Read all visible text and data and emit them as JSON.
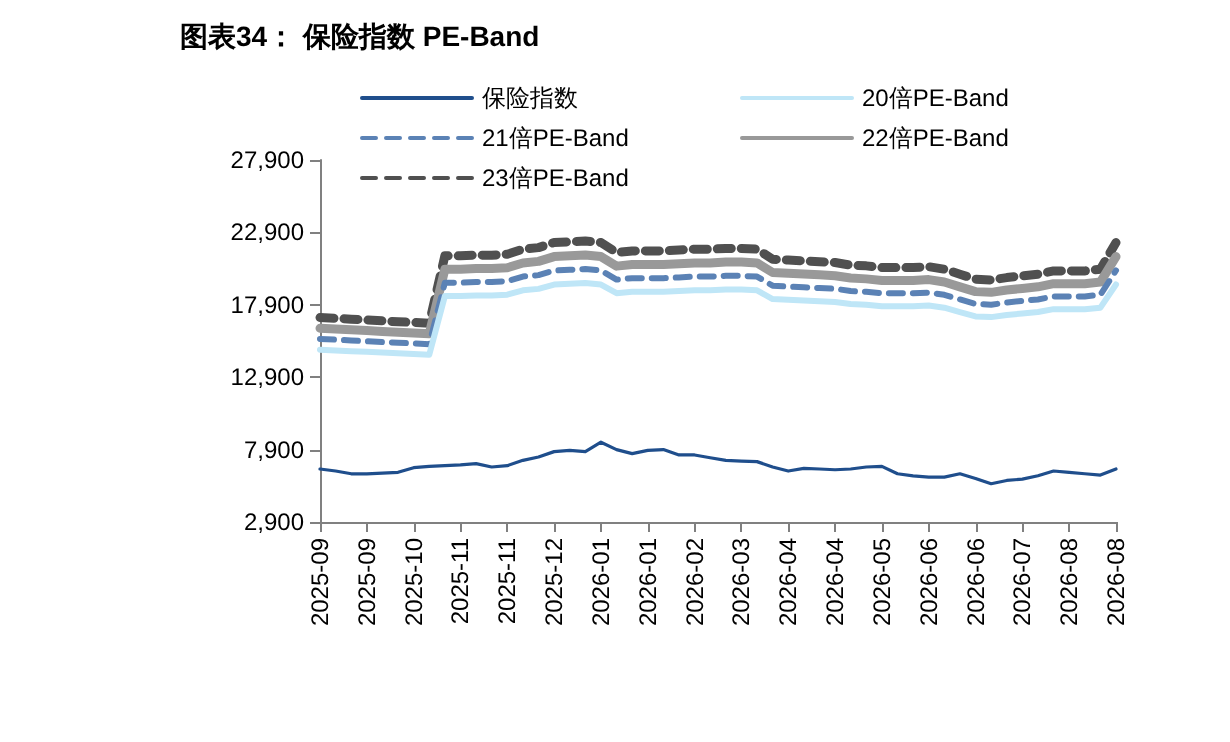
{
  "chart_data": {
    "type": "line",
    "title": "图表34： 保险指数 PE-Band",
    "categories": [
      "2025-09",
      null,
      null,
      "2025-09",
      null,
      null,
      "2025-10",
      null,
      null,
      "2025-11",
      null,
      null,
      "2025-11",
      null,
      null,
      "2025-12",
      null,
      null,
      "2026-01",
      null,
      null,
      "2026-01",
      null,
      null,
      "2026-02",
      null,
      null,
      "2026-03",
      null,
      null,
      "2026-04",
      null,
      null,
      "2026-04",
      null,
      null,
      "2026-05",
      null,
      null,
      "2026-06",
      null,
      null,
      "2026-06",
      null,
      null,
      "2026-07",
      null,
      null,
      "2026-08",
      null,
      null,
      "2026-08"
    ],
    "series": [
      {
        "name": "保险指数",
        "color": "#1f4e8c",
        "line_style": "solid",
        "values": [
          6560,
          6420,
          6230,
          6230,
          6280,
          6330,
          6650,
          6740,
          6790,
          6840,
          6930,
          6700,
          6790,
          7160,
          7390,
          7760,
          7850,
          7760,
          8410,
          7900,
          7620,
          7850,
          7900,
          7530,
          7530,
          7340,
          7160,
          7110,
          7070,
          6700,
          6420,
          6600,
          6560,
          6510,
          6560,
          6700,
          6740,
          6230,
          6090,
          6000,
          6000,
          6230,
          5910,
          5540,
          5770,
          5860,
          6090,
          6420,
          6330,
          6230,
          6140,
          6560
        ]
      },
      {
        "name": "20倍PE-Band",
        "color": "#bfe6f7",
        "line_style": "solid",
        "values": [
          14800,
          14750,
          14700,
          14650,
          14600,
          14550,
          14500,
          14450,
          18500,
          18500,
          18550,
          18550,
          18600,
          18900,
          19000,
          19300,
          19350,
          19400,
          19300,
          18700,
          18800,
          18800,
          18800,
          18850,
          18900,
          18900,
          18950,
          18950,
          18900,
          18300,
          18250,
          18200,
          18150,
          18100,
          17950,
          17900,
          17800,
          17800,
          17800,
          17850,
          17700,
          17400,
          17100,
          17050,
          17200,
          17300,
          17400,
          17600,
          17600,
          17600,
          17700,
          19300
        ]
      },
      {
        "name": "21倍PE-Band",
        "color": "#5b82b5",
        "line_style": "dashed",
        "values": [
          15540,
          15490,
          15440,
          15380,
          15330,
          15280,
          15230,
          15170,
          19430,
          19430,
          19480,
          19480,
          19530,
          19850,
          19950,
          20270,
          20320,
          20370,
          20270,
          19640,
          19740,
          19740,
          19740,
          19790,
          19850,
          19850,
          19900,
          19900,
          19850,
          19220,
          19160,
          19110,
          19060,
          19010,
          18850,
          18800,
          18690,
          18690,
          18690,
          18740,
          18590,
          18270,
          17960,
          17900,
          18060,
          18170,
          18270,
          18480,
          18480,
          18480,
          18590,
          20270
        ]
      },
      {
        "name": "22倍PE-Band",
        "color": "#999999",
        "line_style": "solid",
        "values": [
          16280,
          16230,
          16170,
          16120,
          16060,
          16010,
          15950,
          15900,
          20350,
          20350,
          20410,
          20410,
          20460,
          20790,
          20900,
          21230,
          21290,
          21340,
          21230,
          20570,
          20680,
          20680,
          20680,
          20740,
          20790,
          20790,
          20850,
          20850,
          20790,
          20130,
          20080,
          20020,
          19970,
          19910,
          19750,
          19690,
          19580,
          19580,
          19580,
          19640,
          19470,
          19140,
          18810,
          18760,
          18920,
          19030,
          19140,
          19360,
          19360,
          19360,
          19470,
          21230
        ]
      },
      {
        "name": "23倍PE-Band",
        "color": "#505050",
        "line_style": "dashed",
        "values": [
          17020,
          16960,
          16910,
          16850,
          16790,
          16730,
          16680,
          16620,
          21280,
          21280,
          21330,
          21330,
          21390,
          21740,
          21850,
          22200,
          22250,
          22310,
          22200,
          21510,
          21620,
          21620,
          21620,
          21680,
          21740,
          21740,
          21790,
          21790,
          21740,
          21050,
          20990,
          20930,
          20870,
          20820,
          20640,
          20590,
          20470,
          20470,
          20470,
          20530,
          20360,
          20010,
          19670,
          19610,
          19780,
          19900,
          20010,
          20240,
          20240,
          20240,
          20360,
          22200
        ]
      }
    ],
    "ylim": [
      2900,
      27900
    ],
    "yticks": [
      {
        "value": 2900,
        "label": "2,900"
      },
      {
        "value": 7900,
        "label": "7,900"
      },
      {
        "value": 12900,
        "label": "12,900"
      },
      {
        "value": 17900,
        "label": "17,900"
      },
      {
        "value": 22900,
        "label": "22,900"
      },
      {
        "value": 27900,
        "label": "27,900"
      }
    ],
    "grid": false,
    "legend": "top",
    "marker": "none"
  }
}
